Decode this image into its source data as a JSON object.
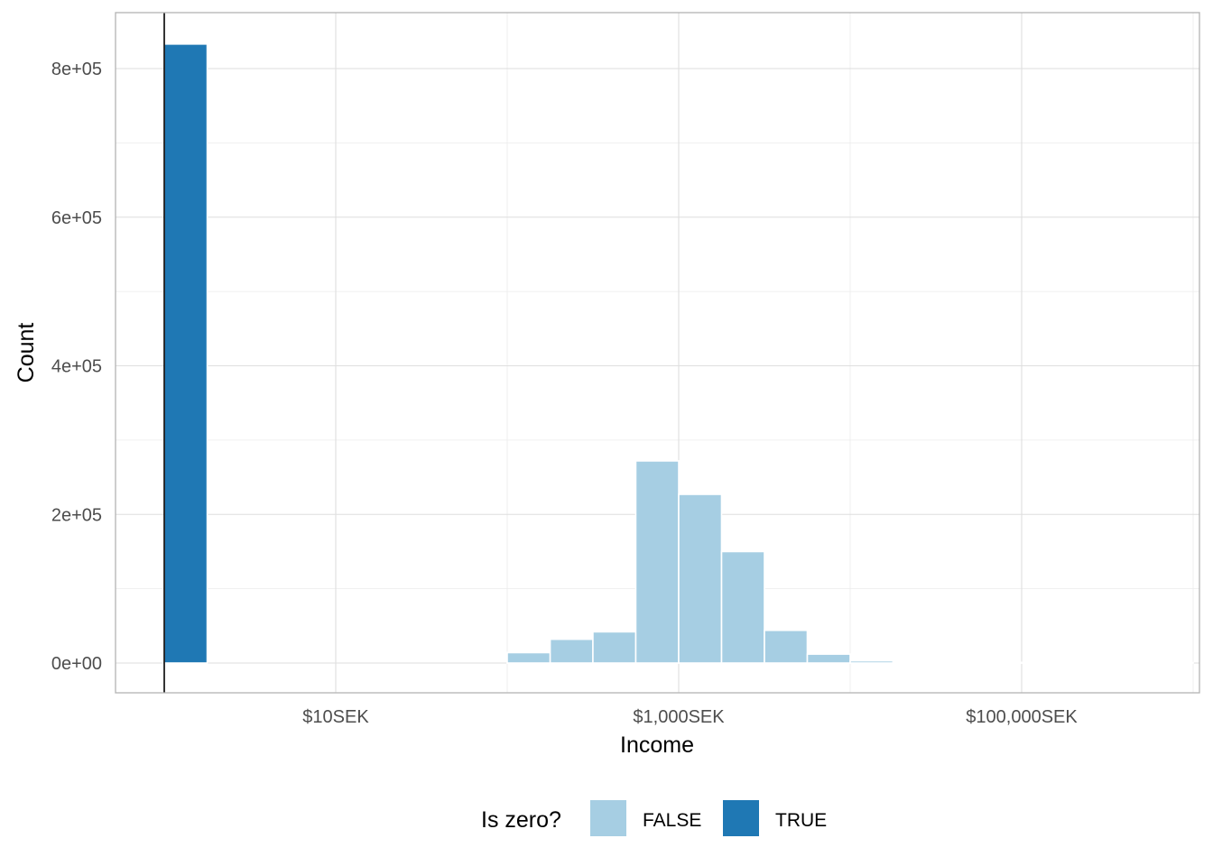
{
  "chart_data": {
    "type": "bar",
    "x_scale": "log10",
    "x_ticks": [
      {
        "value": 10,
        "label": "$10SEK"
      },
      {
        "value": 1000,
        "label": "$1,000SEK"
      },
      {
        "value": 100000,
        "label": "$100,000SEK"
      }
    ],
    "y_ticks": [
      {
        "value": 0,
        "label": "0e+00"
      },
      {
        "value": 200000,
        "label": "2e+05"
      },
      {
        "value": 400000,
        "label": "4e+05"
      },
      {
        "value": 600000,
        "label": "6e+05"
      },
      {
        "value": 800000,
        "label": "8e+05"
      }
    ],
    "xlabel": "Income",
    "ylabel": "Count",
    "ylim": [
      -40000,
      880000
    ],
    "grid": true,
    "legend": {
      "title": "Is zero?",
      "position": "bottom",
      "entries": [
        {
          "label": "FALSE",
          "color": "#a6cee3"
        },
        {
          "label": "TRUE",
          "color": "#1f78b4"
        }
      ]
    },
    "series": [
      {
        "name": "TRUE",
        "color": "#1f78b4",
        "bars": [
          {
            "x_from": 1,
            "x_to": 1.78,
            "count": 833000
          }
        ]
      },
      {
        "name": "FALSE",
        "color": "#a6cee3",
        "bars": [
          {
            "x_from": 100,
            "x_to": 178,
            "count": 14000
          },
          {
            "x_from": 178,
            "x_to": 316,
            "count": 32000
          },
          {
            "x_from": 316,
            "x_to": 562,
            "count": 42000
          },
          {
            "x_from": 562,
            "x_to": 1000,
            "count": 272000
          },
          {
            "x_from": 1000,
            "x_to": 1778,
            "count": 227000
          },
          {
            "x_from": 1778,
            "x_to": 3162,
            "count": 150000
          },
          {
            "x_from": 3162,
            "x_to": 5623,
            "count": 44000
          },
          {
            "x_from": 5623,
            "x_to": 10000,
            "count": 12000
          },
          {
            "x_from": 10000,
            "x_to": 17783,
            "count": 3000
          },
          {
            "x_from": 17783,
            "x_to": 31623,
            "count": 600
          },
          {
            "x_from": 31623,
            "x_to": 56234,
            "count": 300
          },
          {
            "x_from": 56234,
            "x_to": 100000,
            "count": 200
          },
          {
            "x_from": 100000,
            "x_to": 177828,
            "count": 150
          },
          {
            "x_from": 177828,
            "x_to": 316228,
            "count": 100
          },
          {
            "x_from": 316228,
            "x_to": 562341,
            "count": 80
          },
          {
            "x_from": 562341,
            "x_to": 1000000,
            "count": 50
          }
        ]
      }
    ],
    "reference_line": {
      "x": 1,
      "color": "#000000"
    }
  }
}
